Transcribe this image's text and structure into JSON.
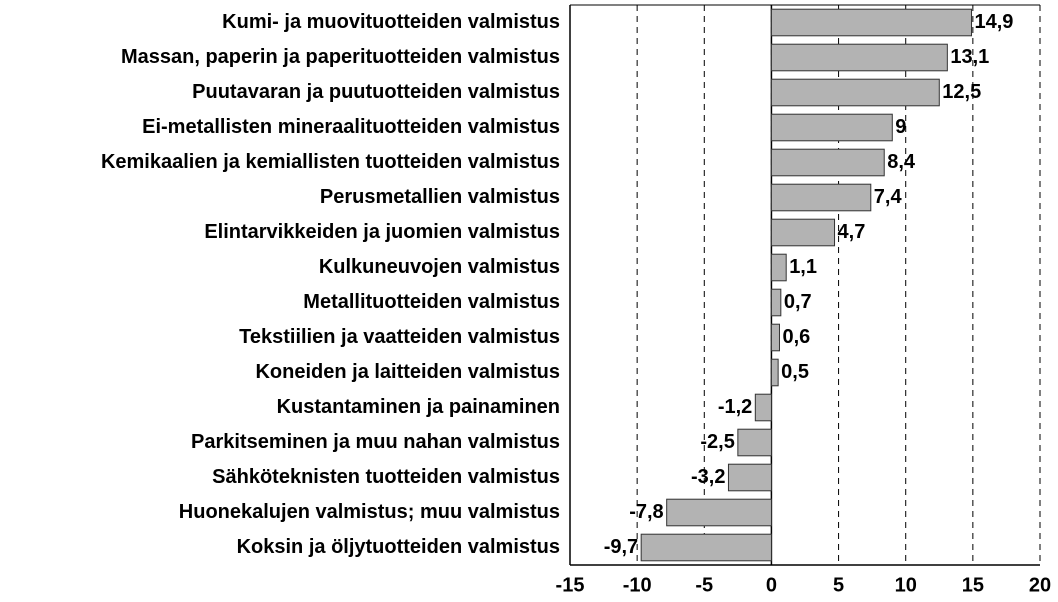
{
  "chart_data": {
    "type": "bar",
    "orientation": "horizontal",
    "categories": [
      "Kumi- ja muovituotteiden valmistus",
      "Massan, paperin ja paperituotteiden valmistus",
      "Puutavaran ja puutuotteiden valmistus",
      "Ei-metallisten mineraalituotteiden valmistus",
      "Kemikaalien ja kemiallisten tuotteiden valmistus",
      "Perusmetallien valmistus",
      "Elintarvikkeiden ja juomien valmistus",
      "Kulkuneuvojen valmistus",
      "Metallituotteiden valmistus",
      "Tekstiilien ja vaatteiden valmistus",
      "Koneiden ja laitteiden valmistus",
      "Kustantaminen ja painaminen",
      "Parkitseminen ja muu nahan valmistus",
      "Sähköteknisten tuotteiden valmistus",
      "Huonekalujen valmistus; muu valmistus",
      "Koksin ja öljytuotteiden valmistus"
    ],
    "values": [
      14.9,
      13.1,
      12.5,
      9,
      8.4,
      7.4,
      4.7,
      1.1,
      0.7,
      0.6,
      0.5,
      -1.2,
      -2.5,
      -3.2,
      -7.8,
      -9.7
    ],
    "value_labels": [
      "14,9",
      "13,1",
      "12,5",
      "9",
      "8,4",
      "7,4",
      "4,7",
      "1,1",
      "0,7",
      "0,6",
      "0,5",
      "-1,2",
      "-2,5",
      "-3,2",
      "-7,8",
      "-9,7"
    ],
    "color": "#b3b3b3",
    "xlim": [
      -15,
      20
    ],
    "xticks": [
      -15,
      -10,
      -5,
      0,
      5,
      10,
      15,
      20
    ],
    "grid": true
  }
}
